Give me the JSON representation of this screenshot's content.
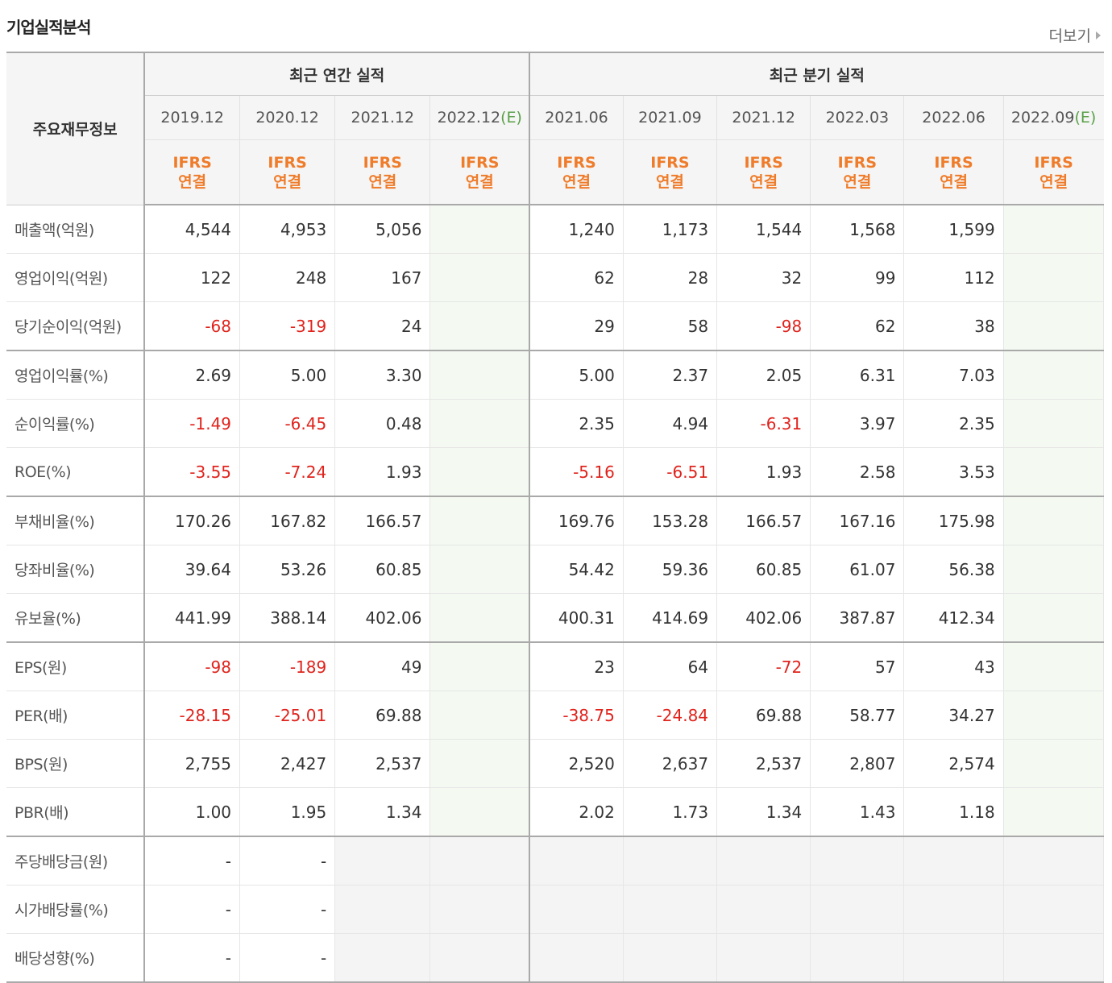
{
  "title": "기업실적분석",
  "more_label": "더보기",
  "header": {
    "row_label": "주요재무정보",
    "annual_group": "최근 연간 실적",
    "quarter_group": "최근 분기 실적",
    "annual_periods": [
      "2019.12",
      "2020.12",
      "2021.12",
      "2022.12"
    ],
    "quarter_periods": [
      "2021.06",
      "2021.09",
      "2021.12",
      "2022.03",
      "2022.06",
      "2022.09"
    ],
    "estimate_mark": "(E)",
    "basis_line1": "IFRS",
    "basis_line2": "연결"
  },
  "rows": [
    {
      "label": "매출액(억원)",
      "values": [
        "4,544",
        "4,953",
        "5,056",
        "",
        "1,240",
        "1,173",
        "1,544",
        "1,568",
        "1,599",
        ""
      ]
    },
    {
      "label": "영업이익(억원)",
      "values": [
        "122",
        "248",
        "167",
        "",
        "62",
        "28",
        "32",
        "99",
        "112",
        ""
      ]
    },
    {
      "label": "당기순이익(억원)",
      "values": [
        "-68",
        "-319",
        "24",
        "",
        "29",
        "58",
        "-98",
        "62",
        "38",
        ""
      ]
    },
    {
      "label": "영업이익률(%)",
      "values": [
        "2.69",
        "5.00",
        "3.30",
        "",
        "5.00",
        "2.37",
        "2.05",
        "6.31",
        "7.03",
        ""
      ]
    },
    {
      "label": "순이익률(%)",
      "values": [
        "-1.49",
        "-6.45",
        "0.48",
        "",
        "2.35",
        "4.94",
        "-6.31",
        "3.97",
        "2.35",
        ""
      ]
    },
    {
      "label": "ROE(%)",
      "values": [
        "-3.55",
        "-7.24",
        "1.93",
        "",
        "-5.16",
        "-6.51",
        "1.93",
        "2.58",
        "3.53",
        ""
      ]
    },
    {
      "label": "부채비율(%)",
      "values": [
        "170.26",
        "167.82",
        "166.57",
        "",
        "169.76",
        "153.28",
        "166.57",
        "167.16",
        "175.98",
        ""
      ]
    },
    {
      "label": "당좌비율(%)",
      "values": [
        "39.64",
        "53.26",
        "60.85",
        "",
        "54.42",
        "59.36",
        "60.85",
        "61.07",
        "56.38",
        ""
      ]
    },
    {
      "label": "유보율(%)",
      "values": [
        "441.99",
        "388.14",
        "402.06",
        "",
        "400.31",
        "414.69",
        "402.06",
        "387.87",
        "412.34",
        ""
      ]
    },
    {
      "label": "EPS(원)",
      "values": [
        "-98",
        "-189",
        "49",
        "",
        "23",
        "64",
        "-72",
        "57",
        "43",
        ""
      ]
    },
    {
      "label": "PER(배)",
      "values": [
        "-28.15",
        "-25.01",
        "69.88",
        "",
        "-38.75",
        "-24.84",
        "69.88",
        "58.77",
        "34.27",
        ""
      ]
    },
    {
      "label": "BPS(원)",
      "values": [
        "2,755",
        "2,427",
        "2,537",
        "",
        "2,520",
        "2,637",
        "2,537",
        "2,807",
        "2,574",
        ""
      ]
    },
    {
      "label": "PBR(배)",
      "values": [
        "1.00",
        "1.95",
        "1.34",
        "",
        "2.02",
        "1.73",
        "1.34",
        "1.43",
        "1.18",
        ""
      ]
    },
    {
      "label": "주당배당금(원)",
      "values": [
        "-",
        "-",
        "",
        "",
        "",
        "",
        "",
        "",
        "",
        ""
      ]
    },
    {
      "label": "시가배당률(%)",
      "values": [
        "-",
        "-",
        "",
        "",
        "",
        "",
        "",
        "",
        "",
        ""
      ]
    },
    {
      "label": "배당성향(%)",
      "values": [
        "-",
        "-",
        "",
        "",
        "",
        "",
        "",
        "",
        "",
        ""
      ]
    }
  ],
  "colors": {
    "negative": "#e0231c",
    "basis": "#ef7c2a",
    "estimate_mark": "#59a048",
    "estimate_bg": "#f4f9f2"
  }
}
